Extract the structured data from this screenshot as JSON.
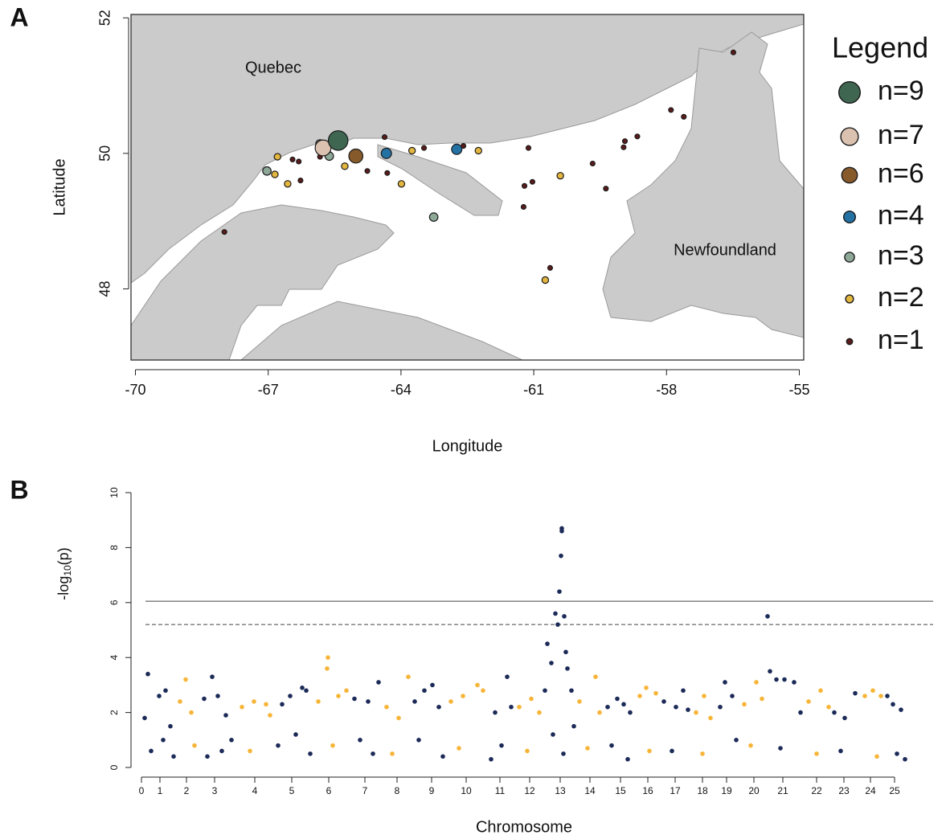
{
  "chart_data": [
    {
      "type": "bubble",
      "panel_label": "A",
      "xlabel": "Longitude",
      "ylabel": "Latitude",
      "labels": [
        "Quebec",
        "Newfoundland"
      ],
      "legend_title": "Legend",
      "legend": "right",
      "xlim": [
        -70.1,
        -54.9
      ],
      "ylim": [
        46.95,
        52.05
      ],
      "xticks": [
        -70,
        -67,
        -64,
        -61,
        -58,
        -55
      ],
      "yticks": [
        48,
        50,
        52
      ],
      "series": [
        {
          "name": "n=9",
          "size": 9,
          "color": "#3f6651",
          "x": [
            -65.42
          ],
          "y": [
            50.19
          ]
        },
        {
          "name": "n=7",
          "size": 7,
          "color": "#dbc1af",
          "x": [
            -65.76
          ],
          "y": [
            50.08
          ]
        },
        {
          "name": "n=6",
          "size": 6,
          "color": "#875a2c",
          "x": [
            -65.02
          ],
          "y": [
            49.96
          ]
        },
        {
          "name": "n=4",
          "size": 4,
          "color": "#2471a3",
          "x": [
            -64.33,
            -62.74
          ],
          "y": [
            50.0,
            50.06
          ]
        },
        {
          "name": "n=3",
          "size": 3,
          "color": "#8ea898",
          "x": [
            -65.83,
            -65.62,
            -67.03,
            -63.26
          ],
          "y": [
            50.14,
            49.96,
            49.74,
            49.06
          ]
        },
        {
          "name": "n=2",
          "size": 2,
          "color": "#e3b63f",
          "x": [
            -66.79,
            -66.85,
            -66.56,
            -65.27,
            -63.75,
            -62.25,
            -63.99,
            -60.4,
            -60.74
          ],
          "y": [
            49.95,
            49.69,
            49.55,
            49.81,
            50.04,
            50.04,
            49.55,
            49.67,
            48.13
          ]
        },
        {
          "name": "n=1",
          "size": 1,
          "color": "#5b1b1b",
          "x": [
            -66.45,
            -66.31,
            -66.27,
            -67.99,
            -65.83,
            -64.76,
            -64.37,
            -64.31,
            -63.48,
            -62.59,
            -61.12,
            -61.21,
            -61.03,
            -61.23,
            -60.63,
            -59.67,
            -59.37,
            -58.97,
            -58.94,
            -58.66,
            -57.9,
            -57.61,
            -56.49
          ],
          "y": [
            49.91,
            49.88,
            49.6,
            48.84,
            49.95,
            49.74,
            50.24,
            49.71,
            50.08,
            50.11,
            50.08,
            49.52,
            49.58,
            49.21,
            48.31,
            49.85,
            49.48,
            50.09,
            50.18,
            50.25,
            50.64,
            50.54,
            51.49
          ]
        }
      ]
    },
    {
      "type": "scatter",
      "panel_label": "B",
      "xlabel": "Chromosome",
      "ylabel": {
        "text": "-log",
        "sub": "10",
        "suffix": "(p)"
      },
      "xlim": [
        -3,
        955
      ],
      "ylim": [
        0,
        10
      ],
      "yticks": [
        0,
        2,
        4,
        6,
        8,
        10
      ],
      "xticks": [
        {
          "value": 0,
          "label": "0"
        },
        {
          "value": 23,
          "label": "1"
        },
        {
          "value": 56,
          "label": "2"
        },
        {
          "value": 91,
          "label": "3"
        },
        {
          "value": 141,
          "label": "4"
        },
        {
          "value": 187,
          "label": "5"
        },
        {
          "value": 233,
          "label": "6"
        },
        {
          "value": 278,
          "label": "7"
        },
        {
          "value": 318,
          "label": "8"
        },
        {
          "value": 361,
          "label": "9"
        },
        {
          "value": 404,
          "label": "10"
        },
        {
          "value": 446,
          "label": "11"
        },
        {
          "value": 483,
          "label": "12"
        },
        {
          "value": 521,
          "label": "13"
        },
        {
          "value": 558,
          "label": "14"
        },
        {
          "value": 596,
          "label": "15"
        },
        {
          "value": 630,
          "label": "16"
        },
        {
          "value": 664,
          "label": "17"
        },
        {
          "value": 698,
          "label": "18"
        },
        {
          "value": 728,
          "label": "19"
        },
        {
          "value": 762,
          "label": "20"
        },
        {
          "value": 798,
          "label": "21"
        },
        {
          "value": 840,
          "label": "22"
        },
        {
          "value": 874,
          "label": "23"
        },
        {
          "value": 907,
          "label": "24"
        },
        {
          "value": 937,
          "label": "25"
        }
      ],
      "hlines": [
        {
          "value": 6.05,
          "style": "solid"
        },
        {
          "value": 5.2,
          "style": "dashed"
        }
      ],
      "series": [
        {
          "color": "#1b2a57",
          "x": [
            8,
            4,
            12,
            22,
            30,
            36,
            40,
            27,
            78,
            88,
            95,
            105,
            112,
            82,
            100,
            175,
            185,
            200,
            205,
            192,
            210,
            170,
            265,
            282,
            295,
            272,
            288,
            340,
            352,
            362,
            370,
            345,
            375,
            440,
            455,
            460,
            448,
            435,
            502,
            505,
            510,
            515,
            518,
            520,
            522,
            523,
            523,
            526,
            528,
            530,
            535,
            512,
            525,
            538,
            580,
            592,
            600,
            608,
            585,
            605,
            650,
            665,
            674,
            680,
            660,
            720,
            726,
            735,
            740,
            779,
            782,
            790,
            800,
            812,
            820,
            795,
            862,
            875,
            888,
            870,
            928,
            935,
            945,
            940,
            950
          ],
          "y": [
            3.4,
            1.8,
            0.6,
            2.6,
            2.8,
            1.5,
            0.4,
            1.0,
            2.5,
            3.3,
            2.6,
            1.9,
            1.0,
            0.4,
            0.6,
            2.3,
            2.6,
            2.9,
            2.8,
            1.2,
            0.5,
            0.8,
            2.5,
            2.4,
            3.1,
            1.0,
            0.5,
            2.4,
            2.8,
            3.0,
            2.2,
            1.0,
            0.4,
            2.0,
            3.3,
            2.2,
            0.8,
            0.3,
            2.8,
            4.5,
            3.8,
            5.6,
            5.2,
            6.4,
            7.7,
            8.6,
            8.7,
            5.5,
            4.2,
            3.6,
            2.8,
            1.2,
            0.5,
            1.5,
            2.2,
            2.5,
            2.3,
            2.0,
            0.8,
            0.3,
            2.4,
            2.2,
            2.8,
            2.1,
            0.6,
            2.2,
            3.1,
            2.6,
            1.0,
            5.5,
            3.5,
            3.2,
            3.2,
            3.1,
            2.0,
            0.7,
            2.0,
            1.8,
            2.7,
            0.6,
            2.6,
            2.3,
            2.1,
            0.5,
            0.3
          ]
        },
        {
          "color": "#f7b538",
          "x": [
            48,
            55,
            62,
            66,
            125,
            140,
            155,
            160,
            135,
            220,
            232,
            231,
            245,
            255,
            238,
            305,
            320,
            332,
            312,
            385,
            400,
            418,
            425,
            395,
            470,
            485,
            495,
            480,
            545,
            565,
            570,
            555,
            620,
            628,
            640,
            632,
            690,
            700,
            708,
            698,
            750,
            765,
            772,
            758,
            830,
            845,
            855,
            840,
            900,
            910,
            920,
            915
          ],
          "y": [
            2.4,
            3.2,
            2.0,
            0.8,
            2.2,
            2.4,
            2.3,
            1.9,
            0.6,
            2.4,
            4.0,
            3.6,
            2.6,
            2.8,
            0.8,
            2.2,
            1.8,
            3.3,
            0.5,
            2.4,
            2.6,
            3.0,
            2.8,
            0.7,
            2.2,
            2.5,
            2.0,
            0.6,
            2.4,
            3.3,
            2.0,
            0.7,
            2.6,
            2.9,
            2.7,
            0.6,
            2.0,
            2.6,
            1.8,
            0.5,
            2.3,
            3.1,
            2.5,
            0.8,
            2.4,
            2.8,
            2.2,
            0.5,
            2.6,
            2.8,
            2.6,
            0.4
          ]
        }
      ]
    }
  ]
}
